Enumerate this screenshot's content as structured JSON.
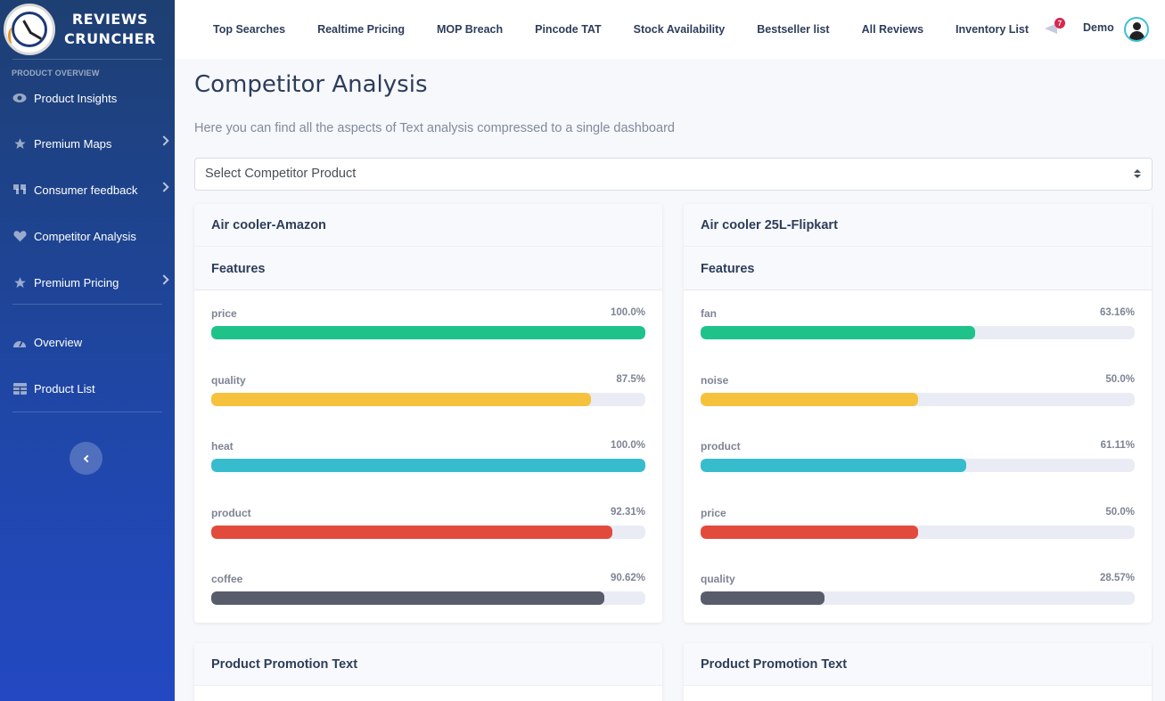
{
  "app": {
    "brand_line1": "REVIEWS",
    "brand_line2": "CRUNCHER"
  },
  "sidebar": {
    "section_title": "PRODUCT OVERVIEW",
    "items": [
      {
        "label": "Product Insights",
        "icon": "eye-icon",
        "has_chevron": false
      },
      {
        "label": "Premium Maps",
        "icon": "star-icon",
        "has_chevron": true
      },
      {
        "label": "Consumer feedback",
        "icon": "quote-icon",
        "has_chevron": true
      },
      {
        "label": "Competitor Analysis",
        "icon": "heart-icon",
        "has_chevron": false
      },
      {
        "label": "Premium Pricing",
        "icon": "star-icon",
        "has_chevron": true
      }
    ],
    "items2": [
      {
        "label": "Overview",
        "icon": "gauge-icon"
      },
      {
        "label": "Product List",
        "icon": "table-icon"
      }
    ]
  },
  "header": {
    "tabs": [
      "Top Searches",
      "Realtime Pricing",
      "MOP Breach",
      "Pincode TAT",
      "Stock Availability",
      "Bestseller list",
      "All Reviews",
      "Inventory List"
    ],
    "notification_count": "7",
    "user_name": "Demo"
  },
  "main": {
    "title": "Competitor Analysis",
    "subtitle": "Here you can find all the aspects of Text analysis compressed to a single dashboard",
    "select_placeholder": "Select Competitor Product"
  },
  "colors": {
    "green": "#1fc38a",
    "yellow": "#f6c23e",
    "teal": "#37bcce",
    "red": "#e24b3b",
    "dark": "#585c6b"
  },
  "cards": [
    {
      "title": "Air cooler-Amazon",
      "subtitle": "Features",
      "features": [
        {
          "label": "price",
          "pct_text": "100.0%",
          "value": 100.0,
          "color": "#1fc38a"
        },
        {
          "label": "quality",
          "pct_text": "87.5%",
          "value": 87.5,
          "color": "#f6c23e"
        },
        {
          "label": "heat",
          "pct_text": "100.0%",
          "value": 100.0,
          "color": "#37bcce"
        },
        {
          "label": "product",
          "pct_text": "92.31%",
          "value": 92.31,
          "color": "#e24b3b"
        },
        {
          "label": "coffee",
          "pct_text": "90.62%",
          "value": 90.62,
          "color": "#585c6b"
        }
      ],
      "promo_title": "Product Promotion Text"
    },
    {
      "title": "Air cooler 25L-Flipkart",
      "subtitle": "Features",
      "features": [
        {
          "label": "fan",
          "pct_text": "63.16%",
          "value": 63.16,
          "color": "#1fc38a"
        },
        {
          "label": "noise",
          "pct_text": "50.0%",
          "value": 50.0,
          "color": "#f6c23e"
        },
        {
          "label": "product",
          "pct_text": "61.11%",
          "value": 61.11,
          "color": "#37bcce"
        },
        {
          "label": "price",
          "pct_text": "50.0%",
          "value": 50.0,
          "color": "#e24b3b"
        },
        {
          "label": "quality",
          "pct_text": "28.57%",
          "value": 28.57,
          "color": "#585c6b"
        }
      ],
      "promo_title": "Product Promotion Text"
    }
  ]
}
